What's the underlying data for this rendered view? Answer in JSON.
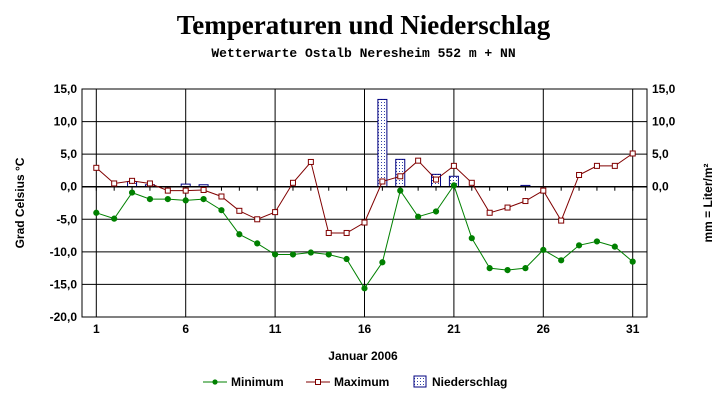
{
  "chart_data": {
    "type": "line",
    "title": "Temperaturen und Niederschlag",
    "subtitle": "Wetterwarte Ostalb Neresheim 552 m + NN",
    "xlabel": "Januar 2006",
    "ylabel_left": "Grad Celsius °C",
    "ylabel_right": "mm = Liter/m²",
    "ylim": [
      -20,
      15
    ],
    "y_ticks_left": [
      "15,0",
      "10,0",
      "5,0",
      "0,0",
      "-5,0",
      "-10,0",
      "-15,0",
      "-20,0"
    ],
    "y_ticks_right": [
      "15,0",
      "10,0",
      "5,0",
      "0,0"
    ],
    "x_ticks": [
      "1",
      "6",
      "11",
      "16",
      "21",
      "26",
      "31"
    ],
    "grid": true,
    "legend_position": "bottom",
    "x": [
      1,
      2,
      3,
      4,
      5,
      6,
      7,
      8,
      9,
      10,
      11,
      12,
      13,
      14,
      15,
      16,
      17,
      18,
      19,
      20,
      21,
      22,
      23,
      24,
      25,
      26,
      27,
      28,
      29,
      30,
      31
    ],
    "series": [
      {
        "name": "Minimum",
        "kind": "line",
        "color": "#008000",
        "marker": "filled-circle",
        "values": [
          -4.0,
          -4.9,
          -0.9,
          -1.9,
          -1.9,
          -2.1,
          -1.9,
          -3.6,
          -7.3,
          -8.7,
          -10.4,
          -10.4,
          -10.1,
          -10.4,
          -11.1,
          -15.6,
          -11.6,
          -0.6,
          -4.6,
          -3.8,
          0.2,
          -7.9,
          -12.5,
          -12.8,
          -12.5,
          -9.7,
          -11.3,
          -9.0,
          -8.4,
          -9.2,
          -11.5
        ]
      },
      {
        "name": "Maximum",
        "kind": "line",
        "color": "#800000",
        "marker": "open-square",
        "values": [
          2.9,
          0.5,
          0.9,
          0.5,
          -0.6,
          -0.6,
          -0.5,
          -1.5,
          -3.7,
          -5.0,
          -3.9,
          0.6,
          3.8,
          -7.1,
          -7.1,
          -5.5,
          0.8,
          1.6,
          4.0,
          1.1,
          3.2,
          0.6,
          -4.0,
          -3.2,
          -2.2,
          -0.6,
          -5.2,
          1.8,
          3.2,
          3.2,
          5.1
        ]
      },
      {
        "name": "Niederschlag",
        "kind": "bar",
        "color": "#e8eefc",
        "stroke": "#000080",
        "values": [
          0,
          0,
          0.8,
          0.3,
          0,
          0.4,
          0.3,
          0,
          0,
          0,
          0,
          0,
          0,
          0,
          0,
          0,
          13.4,
          4.2,
          0,
          1.9,
          1.6,
          0,
          0,
          0,
          0.2,
          0,
          0,
          0,
          0,
          0,
          0
        ]
      }
    ]
  }
}
